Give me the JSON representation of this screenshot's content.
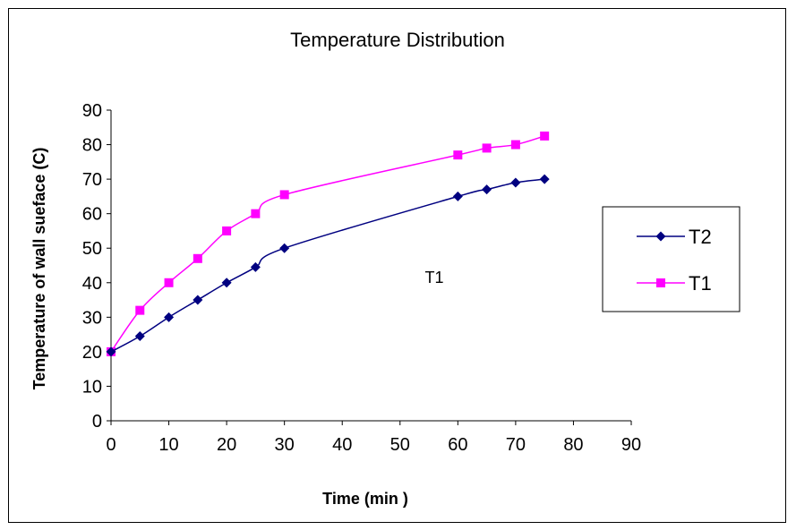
{
  "chart_data": {
    "type": "line",
    "title": "Temperature Distribution",
    "xlabel": "Time (min )",
    "ylabel": "Temperature of wall sueface (C)",
    "xlim": [
      0,
      90
    ],
    "ylim": [
      0,
      90
    ],
    "xticks": [
      "0",
      "10",
      "20",
      "30",
      "40",
      "50",
      "60",
      "70",
      "80",
      "90"
    ],
    "yticks": [
      "0",
      "10",
      "20",
      "30",
      "40",
      "50",
      "60",
      "70",
      "80",
      "90"
    ],
    "grid": false,
    "legend_position": "right",
    "annotation": "T1",
    "series": [
      {
        "name": "T2",
        "color": "#000080",
        "marker": "diamond",
        "x": [
          0,
          5,
          10,
          15,
          20,
          25,
          30,
          60,
          65,
          70,
          75
        ],
        "y": [
          20,
          24.5,
          30,
          35,
          40,
          44.5,
          50,
          65,
          67,
          69,
          70
        ]
      },
      {
        "name": "T1",
        "color": "#ff00ff",
        "marker": "square",
        "x": [
          0,
          5,
          10,
          15,
          20,
          25,
          30,
          60,
          65,
          70,
          75
        ],
        "y": [
          20,
          32,
          40,
          47,
          55,
          60,
          65.5,
          77,
          79,
          80,
          82.5
        ]
      }
    ]
  }
}
